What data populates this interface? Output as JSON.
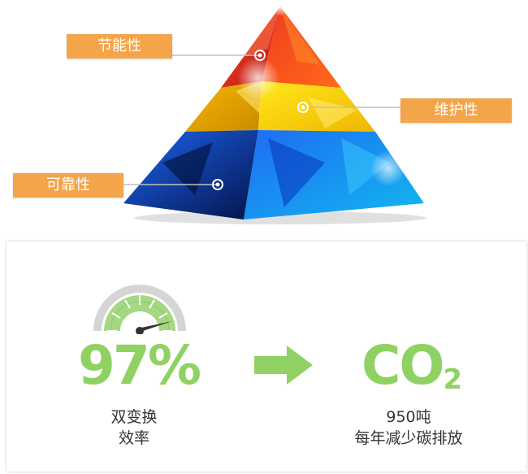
{
  "pyramid": {
    "labels": [
      {
        "id": "top",
        "text": "节能性"
      },
      {
        "id": "middle",
        "text": "维护性"
      },
      {
        "id": "bottom",
        "text": "可靠性"
      }
    ],
    "colors": {
      "top": "#e8261c",
      "middle": "#f5d60a",
      "bottom": "#1a5fe0",
      "tag": "#f4a449"
    }
  },
  "metrics": {
    "efficiency": {
      "value": "97%",
      "caption_line1": "双变换",
      "caption_line2": "效率",
      "gauge_icon": "gauge-icon"
    },
    "arrow_icon": "arrow-right-icon",
    "carbon": {
      "symbol": "CO",
      "subscript": "2",
      "caption_line1": "950吨",
      "caption_line2": "每年减少碳排放"
    },
    "accent_color": "#8fd263"
  }
}
